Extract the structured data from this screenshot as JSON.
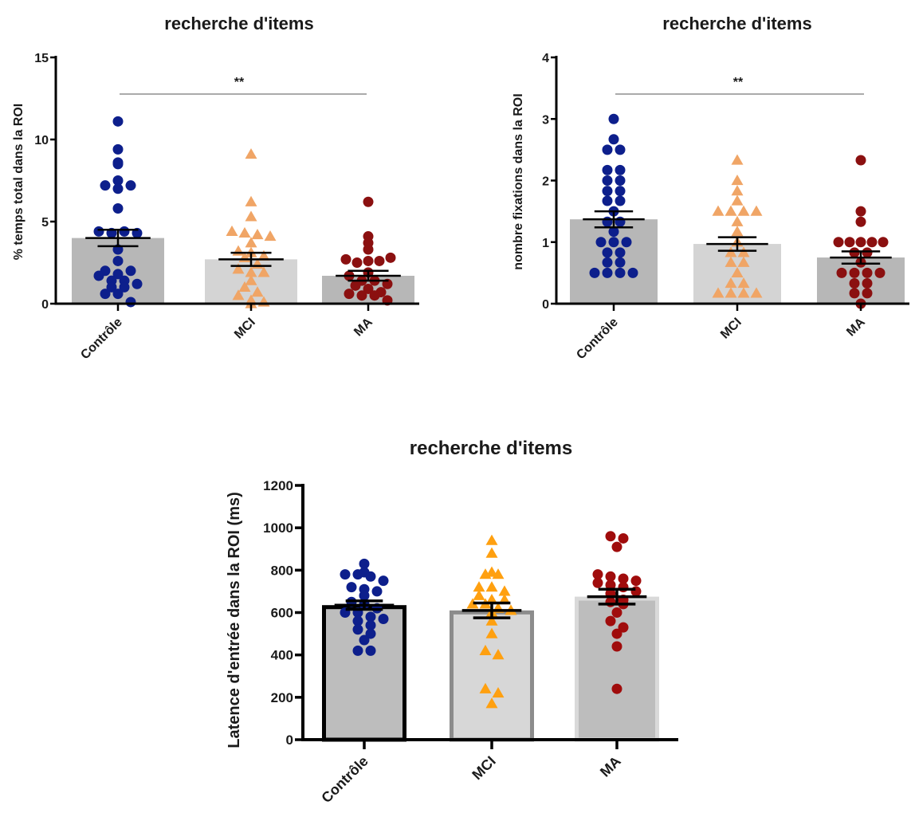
{
  "chart_data": [
    {
      "type": "bar",
      "title": "recherche d'items",
      "ylabel": "% temps total dans la ROI",
      "xlabel": "",
      "categories": [
        "Contrôle",
        "MCI",
        "MA"
      ],
      "ylim": [
        0,
        15
      ],
      "yticks": [
        "0",
        "5",
        "10",
        "15"
      ],
      "means": [
        4.0,
        2.7,
        1.7
      ],
      "sem": [
        0.5,
        0.4,
        0.3
      ],
      "bar_colors": [
        "#b7b7b7",
        "#d4d4d4",
        "#b7b7b7"
      ],
      "point_colors": [
        "#0d1f8c",
        "#f0a566",
        "#8b1010"
      ],
      "point_shapes": [
        "circle",
        "triangle",
        "circle"
      ],
      "significance": "**",
      "points": [
        [
          11.1,
          9.4,
          8.5,
          8.6,
          7.5,
          7.2,
          7.0,
          7.2,
          5.8,
          4.4,
          4.3,
          4.4,
          4.3,
          3.3,
          2.6,
          2.0,
          1.8,
          1.7,
          2.0,
          1.4,
          1.4,
          1.2,
          1.0,
          1.0,
          0.6,
          0.6,
          0.1
        ],
        [
          9.1,
          6.2,
          5.3,
          4.4,
          4.3,
          4.2,
          4.1,
          3.7,
          3.2,
          3.1,
          2.9,
          2.8,
          2.4,
          2.1,
          1.9,
          1.9,
          1.4,
          1.0,
          0.7,
          0.5,
          0.2,
          0.1,
          0.0
        ],
        [
          6.2,
          4.1,
          3.7,
          3.3,
          2.7,
          2.5,
          2.6,
          2.6,
          2.8,
          1.9,
          1.7,
          1.4,
          1.4,
          1.2,
          1.1,
          0.9,
          0.7,
          0.6,
          0.5,
          0.5,
          0.2
        ]
      ]
    },
    {
      "type": "bar",
      "title": "recherche d'items",
      "ylabel": "nombre fixations dans la ROI",
      "xlabel": "",
      "categories": [
        "Contrôle",
        "MCI",
        "MA"
      ],
      "ylim": [
        0,
        4
      ],
      "yticks": [
        "0",
        "1",
        "2",
        "3",
        "4"
      ],
      "means": [
        1.37,
        0.97,
        0.75
      ],
      "sem": [
        0.13,
        0.11,
        0.1
      ],
      "bar_colors": [
        "#b7b7b7",
        "#d4d4d4",
        "#b7b7b7"
      ],
      "point_colors": [
        "#0d1f8c",
        "#f0a566",
        "#8b1010"
      ],
      "point_shapes": [
        "circle",
        "triangle",
        "circle"
      ],
      "significance": "**",
      "points": [
        [
          3.0,
          2.67,
          2.5,
          2.5,
          2.17,
          2.17,
          2.0,
          2.0,
          1.83,
          1.83,
          1.67,
          1.67,
          1.5,
          1.33,
          1.33,
          1.17,
          1.0,
          1.0,
          1.0,
          0.83,
          0.83,
          0.67,
          0.67,
          0.5,
          0.5,
          0.5,
          0.5
        ],
        [
          2.33,
          2.0,
          1.83,
          1.67,
          1.5,
          1.5,
          1.5,
          1.5,
          1.33,
          1.17,
          1.0,
          0.83,
          0.83,
          0.67,
          0.67,
          0.5,
          0.33,
          0.33,
          0.17,
          0.17,
          0.17,
          0.17
        ],
        [
          2.33,
          1.5,
          1.33,
          1.0,
          1.0,
          1.0,
          1.0,
          1.0,
          0.83,
          0.83,
          0.67,
          0.5,
          0.5,
          0.5,
          0.5,
          0.33,
          0.33,
          0.17,
          0.17,
          0.0
        ]
      ]
    },
    {
      "type": "bar",
      "title": "recherche d'items",
      "ylabel": "Latence d'entrée dans la ROI (ms)",
      "xlabel": "",
      "categories": [
        "Contrôle",
        "MCI",
        "MA"
      ],
      "ylim": [
        0,
        1200
      ],
      "yticks": [
        "0",
        "200",
        "400",
        "600",
        "800",
        "1000",
        "1200"
      ],
      "means": [
        635,
        610,
        675
      ],
      "sem": [
        20,
        35,
        35
      ],
      "bar_colors": [
        "#bdbdbd",
        "#d7d7d7",
        "#bdbdbd"
      ],
      "bar_edges": [
        "#000000",
        "#8c8c8c",
        "#d9d9d9"
      ],
      "point_colors": [
        "#0d1f8c",
        "#ffa010",
        "#a00c0c"
      ],
      "point_shapes": [
        "circle",
        "triangle",
        "circle"
      ],
      "significance": "",
      "points": [
        [
          830,
          790,
          780,
          780,
          770,
          750,
          720,
          710,
          700,
          680,
          650,
          640,
          620,
          600,
          600,
          580,
          570,
          560,
          540,
          520,
          500,
          470,
          420,
          420
        ],
        [
          940,
          880,
          790,
          780,
          780,
          720,
          720,
          700,
          680,
          660,
          660,
          640,
          640,
          620,
          610,
          600,
          560,
          500,
          420,
          400,
          240,
          220,
          170
        ],
        [
          960,
          950,
          910,
          780,
          770,
          760,
          750,
          740,
          730,
          720,
          700,
          690,
          660,
          650,
          640,
          600,
          560,
          530,
          500,
          440,
          240
        ]
      ]
    }
  ]
}
